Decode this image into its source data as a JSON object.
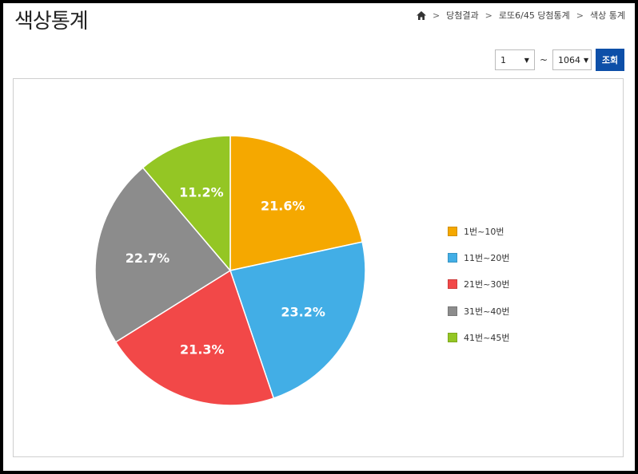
{
  "header": {
    "title": "색상통계",
    "breadcrumb": [
      "당첨결과",
      "로또6/45 당첨통계",
      "색상 통계"
    ]
  },
  "controls": {
    "from_value": "1",
    "separator": "~",
    "to_value": "1064",
    "query_label": "조회"
  },
  "chart_data": {
    "type": "pie",
    "title": "",
    "legend_position": "right",
    "slices": [
      {
        "label": "1번~10번",
        "value": 21.6,
        "display": "21.6%",
        "color": "#f5a800"
      },
      {
        "label": "11번~20번",
        "value": 23.2,
        "display": "23.2%",
        "color": "#42aee6"
      },
      {
        "label": "21번~30번",
        "value": 21.3,
        "display": "21.3%",
        "color": "#f24848"
      },
      {
        "label": "31번~40번",
        "value": 22.7,
        "display": "22.7%",
        "color": "#8c8c8c"
      },
      {
        "label": "41번~45번",
        "value": 11.2,
        "display": "11.2%",
        "color": "#94c624"
      }
    ]
  }
}
